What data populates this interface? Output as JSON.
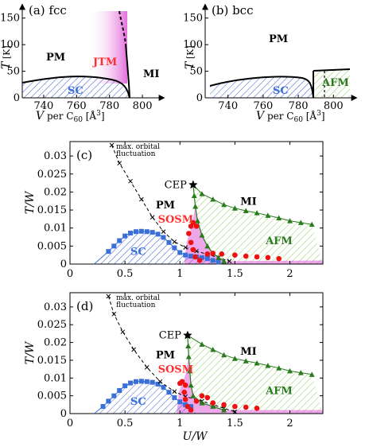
{
  "colors": {
    "sc": "#3a6fd8",
    "jtm": "#ff2f2f",
    "afm": "#2a7a1e",
    "jtm_fill": "#e060d8",
    "afm_hatch": "#8ccf5a",
    "sc_hatch": "#3a5fd8",
    "sosm_point": "#ee1111",
    "afm_line": "#2a7a1e"
  },
  "chart_data": [
    {
      "type": "area",
      "panel": "(a) fcc",
      "xlabel": "V per C60 [Å3]",
      "ylabel": "T [K]",
      "x_ticks": [
        "740",
        "760",
        "780",
        "800"
      ],
      "y_ticks": [
        "0",
        "50",
        "100",
        "150"
      ],
      "xlim": [
        727,
        813
      ],
      "ylim": [
        0,
        175
      ],
      "regions": [
        "PM",
        "JTM",
        "SC",
        "MI"
      ],
      "sc_dome": [
        [
          727,
          26
        ],
        [
          740,
          30
        ],
        [
          760,
          34
        ],
        [
          775,
          32
        ],
        [
          782,
          28
        ],
        [
          784,
          0
        ]
      ],
      "mi_boundary": [
        [
          772,
          170
        ],
        [
          776,
          135
        ],
        [
          780,
          90
        ],
        [
          783,
          45
        ],
        [
          784,
          0
        ]
      ]
    },
    {
      "type": "area",
      "panel": "(b) bcc",
      "xlabel": "V per C60 [Å3]",
      "ylabel": "T [K]",
      "x_ticks": [
        "740",
        "760",
        "780",
        "800"
      ],
      "y_ticks": [
        "0",
        "50",
        "100",
        "150"
      ],
      "xlim": [
        727,
        813
      ],
      "ylim": [
        0,
        175
      ],
      "regions": [
        "PM",
        "SC",
        "AFM"
      ],
      "sc_dome": [
        [
          729,
          20
        ],
        [
          745,
          32
        ],
        [
          765,
          38
        ],
        [
          780,
          37
        ],
        [
          786,
          33
        ],
        [
          788,
          0
        ]
      ],
      "afm_boundary": [
        [
          788,
          45
        ],
        [
          812,
          48
        ]
      ]
    },
    {
      "type": "scatter",
      "panel": "(c)",
      "xlabel": "",
      "ylabel": "T/W",
      "x_ticks": [
        "0",
        "0.5",
        "1",
        "1.5",
        "2"
      ],
      "y_ticks": [
        "0",
        "0.005",
        "0.01",
        "0.015",
        "0.02",
        "0.025",
        "0.03"
      ],
      "xlim": [
        0,
        2.3
      ],
      "ylim": [
        0,
        0.034
      ],
      "annotations": [
        "max. orbital",
        "fluctuation",
        "CEP",
        "PM",
        "MI",
        "SOSM",
        "SC",
        "AFM"
      ],
      "cep": [
        1.12,
        0.022
      ],
      "sc_points": [
        [
          0.35,
          0.0035
        ],
        [
          0.4,
          0.005
        ],
        [
          0.45,
          0.0065
        ],
        [
          0.5,
          0.0078
        ],
        [
          0.55,
          0.0086
        ],
        [
          0.6,
          0.009
        ],
        [
          0.65,
          0.0091
        ],
        [
          0.7,
          0.009
        ],
        [
          0.75,
          0.0088
        ],
        [
          0.8,
          0.0083
        ],
        [
          0.85,
          0.0074
        ],
        [
          0.9,
          0.006
        ],
        [
          0.95,
          0.0045
        ],
        [
          1.0,
          0.0032
        ],
        [
          1.05,
          0.0025
        ],
        [
          1.1,
          0.0022
        ],
        [
          1.15,
          0.002
        ],
        [
          1.2,
          0.0018
        ],
        [
          1.25,
          0.0015
        ],
        [
          1.3,
          0.001
        ],
        [
          1.35,
          0.0006
        ]
      ],
      "orbital_fluct": [
        [
          0.38,
          0.033
        ],
        [
          0.45,
          0.028
        ],
        [
          0.55,
          0.023
        ],
        [
          0.65,
          0.018
        ],
        [
          0.75,
          0.013
        ],
        [
          0.85,
          0.009
        ],
        [
          0.95,
          0.0062
        ],
        [
          1.05,
          0.0046
        ],
        [
          1.15,
          0.0036
        ],
        [
          1.25,
          0.0027
        ],
        [
          1.35,
          0.0018
        ],
        [
          1.45,
          0.0008
        ]
      ],
      "mi_line": [
        [
          1.12,
          0.022
        ],
        [
          1.2,
          0.0195
        ],
        [
          1.3,
          0.018
        ],
        [
          1.4,
          0.0165
        ],
        [
          1.5,
          0.0155
        ],
        [
          1.6,
          0.0148
        ],
        [
          1.7,
          0.0142
        ],
        [
          1.8,
          0.0135
        ],
        [
          1.9,
          0.0128
        ],
        [
          2.0,
          0.012
        ],
        [
          2.1,
          0.0115
        ],
        [
          2.2,
          0.011
        ]
      ],
      "afm_edge": [
        [
          1.12,
          0.022
        ],
        [
          1.13,
          0.019
        ],
        [
          1.14,
          0.016
        ],
        [
          1.16,
          0.012
        ],
        [
          1.2,
          0.008
        ],
        [
          1.25,
          0.005
        ],
        [
          1.3,
          0.003
        ],
        [
          1.35,
          0.0018
        ],
        [
          1.4,
          0.0008
        ]
      ],
      "sosm_points": [
        [
          1.08,
          0.0085
        ],
        [
          1.1,
          0.0105
        ],
        [
          1.12,
          0.0115
        ],
        [
          1.15,
          0.0105
        ],
        [
          1.1,
          0.006
        ],
        [
          1.12,
          0.004
        ],
        [
          1.14,
          0.002
        ],
        [
          1.18,
          0.001
        ],
        [
          1.25,
          0.0028
        ],
        [
          1.3,
          0.003
        ],
        [
          1.38,
          0.0028
        ],
        [
          1.5,
          0.0025
        ],
        [
          1.6,
          0.0022
        ],
        [
          1.7,
          0.002
        ],
        [
          1.8,
          0.0018
        ],
        [
          1.9,
          0.0015
        ]
      ]
    },
    {
      "type": "scatter",
      "panel": "(d)",
      "xlabel": "U/W",
      "ylabel": "T/W",
      "x_ticks": [
        "0",
        "0.5",
        "1",
        "1.5",
        "2"
      ],
      "y_ticks": [
        "0",
        "0.005",
        "0.01",
        "0.015",
        "0.02",
        "0.025",
        "0.03"
      ],
      "xlim": [
        0,
        2.3
      ],
      "ylim": [
        0,
        0.034
      ],
      "annotations": [
        "max. orbital",
        "fluctuation",
        "CEP",
        "PM",
        "MI",
        "SOSM",
        "SC",
        "AFM"
      ],
      "cep": [
        1.07,
        0.022
      ],
      "sc_points": [
        [
          0.3,
          0.002
        ],
        [
          0.35,
          0.0035
        ],
        [
          0.4,
          0.005
        ],
        [
          0.45,
          0.0065
        ],
        [
          0.5,
          0.0078
        ],
        [
          0.55,
          0.0086
        ],
        [
          0.6,
          0.009
        ],
        [
          0.65,
          0.0091
        ],
        [
          0.7,
          0.009
        ],
        [
          0.75,
          0.0088
        ],
        [
          0.8,
          0.0083
        ],
        [
          0.85,
          0.0074
        ],
        [
          0.9,
          0.006
        ],
        [
          0.95,
          0.0045
        ],
        [
          1.0,
          0.0033
        ],
        [
          1.05,
          0.0025
        ],
        [
          1.1,
          0.002
        ]
      ],
      "orbital_fluct": [
        [
          0.35,
          0.033
        ],
        [
          0.4,
          0.028
        ],
        [
          0.48,
          0.023
        ],
        [
          0.58,
          0.018
        ],
        [
          0.7,
          0.013
        ],
        [
          0.82,
          0.009
        ],
        [
          0.95,
          0.0062
        ],
        [
          1.05,
          0.0048
        ],
        [
          1.2,
          0.0035
        ],
        [
          1.3,
          0.0025
        ],
        [
          1.4,
          0.0015
        ],
        [
          1.5,
          0.0005
        ]
      ],
      "mi_line": [
        [
          1.07,
          0.022
        ],
        [
          1.2,
          0.0195
        ],
        [
          1.3,
          0.018
        ],
        [
          1.4,
          0.0165
        ],
        [
          1.5,
          0.0155
        ],
        [
          1.6,
          0.0148
        ],
        [
          1.7,
          0.0142
        ],
        [
          1.8,
          0.0135
        ],
        [
          1.9,
          0.0128
        ],
        [
          2.0,
          0.012
        ],
        [
          2.1,
          0.0115
        ],
        [
          2.2,
          0.011
        ]
      ],
      "afm_edge": [
        [
          1.07,
          0.022
        ],
        [
          1.075,
          0.019
        ],
        [
          1.08,
          0.016
        ],
        [
          1.09,
          0.012
        ],
        [
          1.1,
          0.008
        ],
        [
          1.12,
          0.005
        ],
        [
          1.2,
          0.003
        ],
        [
          1.3,
          0.002
        ],
        [
          1.4,
          0.001
        ]
      ],
      "sosm_points": [
        [
          1.0,
          0.0085
        ],
        [
          1.02,
          0.009
        ],
        [
          1.05,
          0.008
        ],
        [
          1.04,
          0.006
        ],
        [
          1.05,
          0.004
        ],
        [
          1.07,
          0.002
        ],
        [
          1.1,
          0.001
        ],
        [
          1.15,
          0.0035
        ],
        [
          1.2,
          0.005
        ],
        [
          1.25,
          0.0045
        ],
        [
          1.3,
          0.003
        ],
        [
          1.4,
          0.0025
        ],
        [
          1.5,
          0.002
        ],
        [
          1.6,
          0.0018
        ],
        [
          1.7,
          0.0015
        ]
      ]
    }
  ]
}
